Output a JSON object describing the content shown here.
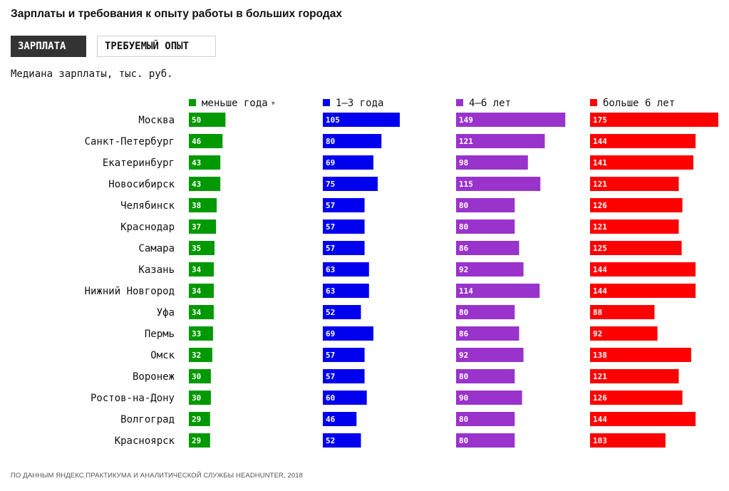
{
  "header": {
    "title": "Зарплаты и требования к опыту работы в больших городах",
    "tab_salary": "ЗАРПЛАТА",
    "tab_experience": "ТРЕБУЕМЫЙ ОПЫТ",
    "subtitle": "Медиана зарплаты, тыс. руб."
  },
  "footer": {
    "source": "ПО ДАННЫМ ЯНДЕКС.ПРАКТИКУМА И АНАЛИТИЧЕСКОЙ СЛУЖБЫ HEADHUNTER, 2018"
  },
  "chart_data": {
    "type": "bar",
    "orientation": "horizontal",
    "title": "Медиана зарплаты, тыс. руб.",
    "sort_indicator": "▾",
    "categories": [
      "Москва",
      "Санкт-Петербург",
      "Екатеринбург",
      "Новосибирск",
      "Челябинск",
      "Краснодар",
      "Самара",
      "Казань",
      "Нижний Новгород",
      "Уфа",
      "Пермь",
      "Омск",
      "Воронеж",
      "Ростов-на-Дону",
      "Волгоград",
      "Красноярск"
    ],
    "xlim": [
      0,
      175
    ],
    "series": [
      {
        "name": "меньше года",
        "color": "#009900",
        "values": [
          50,
          46,
          43,
          43,
          38,
          37,
          35,
          34,
          34,
          34,
          33,
          32,
          30,
          30,
          29,
          29
        ]
      },
      {
        "name": "1–3 года",
        "color": "#0000ee",
        "values": [
          105,
          80,
          69,
          75,
          57,
          57,
          57,
          63,
          63,
          52,
          69,
          57,
          57,
          60,
          46,
          52
        ]
      },
      {
        "name": "4–6 лет",
        "color": "#9933cc",
        "values": [
          149,
          121,
          98,
          115,
          80,
          80,
          86,
          92,
          114,
          80,
          86,
          92,
          80,
          90,
          80,
          80
        ]
      },
      {
        "name": "больше 6 лет",
        "color": "#ff0000",
        "values": [
          175,
          144,
          141,
          121,
          126,
          121,
          125,
          144,
          144,
          88,
          92,
          138,
          121,
          126,
          144,
          103
        ]
      }
    ]
  }
}
